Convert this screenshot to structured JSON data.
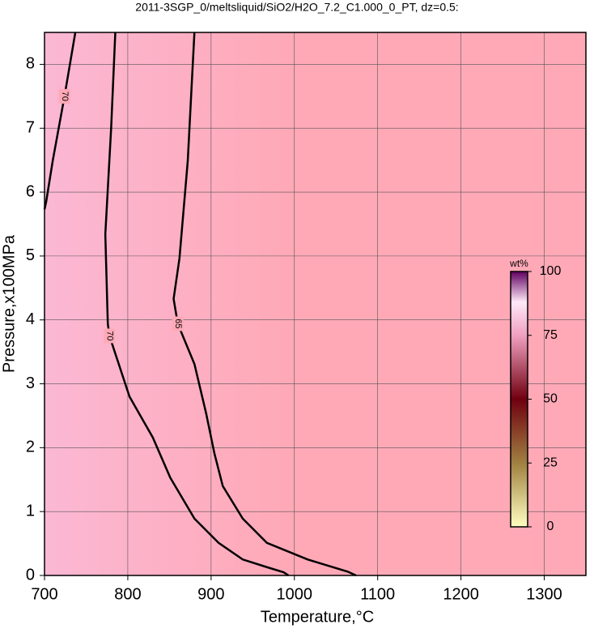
{
  "chart_data": {
    "type": "contour",
    "title": "2011-3SGP_0/meltsliquid/SiO2/H2O_7.2_C1.000_0_PT, dz=0.5:",
    "x_label": "Temperature,°C",
    "y_label": "Pressure,x100MPa",
    "xlim": [
      700,
      1350
    ],
    "xticks": [
      700,
      800,
      900,
      1000,
      1100,
      1200,
      1300
    ],
    "ylim": [
      0,
      8.5
    ],
    "yticks": [
      0,
      1,
      2,
      3,
      4,
      5,
      6,
      7,
      8
    ],
    "grid": true,
    "background": "#ffa9b7",
    "contours": [
      {
        "label": "70",
        "x": [
          737,
          724,
          710,
          702,
          700
        ],
        "y": [
          8.5,
          7.5,
          6.5,
          5.85,
          5.73
        ]
      },
      {
        "label": "70",
        "x": [
          785,
          780,
          773,
          776,
          778,
          802,
          830,
          851,
          880,
          909,
          938,
          967,
          987,
          993
        ],
        "y": [
          8.5,
          7.0,
          5.34,
          3.94,
          3.75,
          2.8,
          2.16,
          1.53,
          0.89,
          0.51,
          0.25,
          0.13,
          0.05,
          0
        ]
      },
      {
        "label": "65",
        "x": [
          880,
          876,
          872,
          862,
          855,
          860,
          880,
          894,
          904,
          914,
          938,
          967,
          1016,
          1064,
          1074
        ],
        "y": [
          8.5,
          7.5,
          6.49,
          4.96,
          4.33,
          3.94,
          3.31,
          2.54,
          1.91,
          1.4,
          0.89,
          0.51,
          0.25,
          0.06,
          0
        ]
      }
    ],
    "colorbar": {
      "label": "wt%",
      "lim": [
        0,
        100
      ],
      "ticks": [
        0,
        25,
        50,
        75,
        100
      ]
    }
  }
}
